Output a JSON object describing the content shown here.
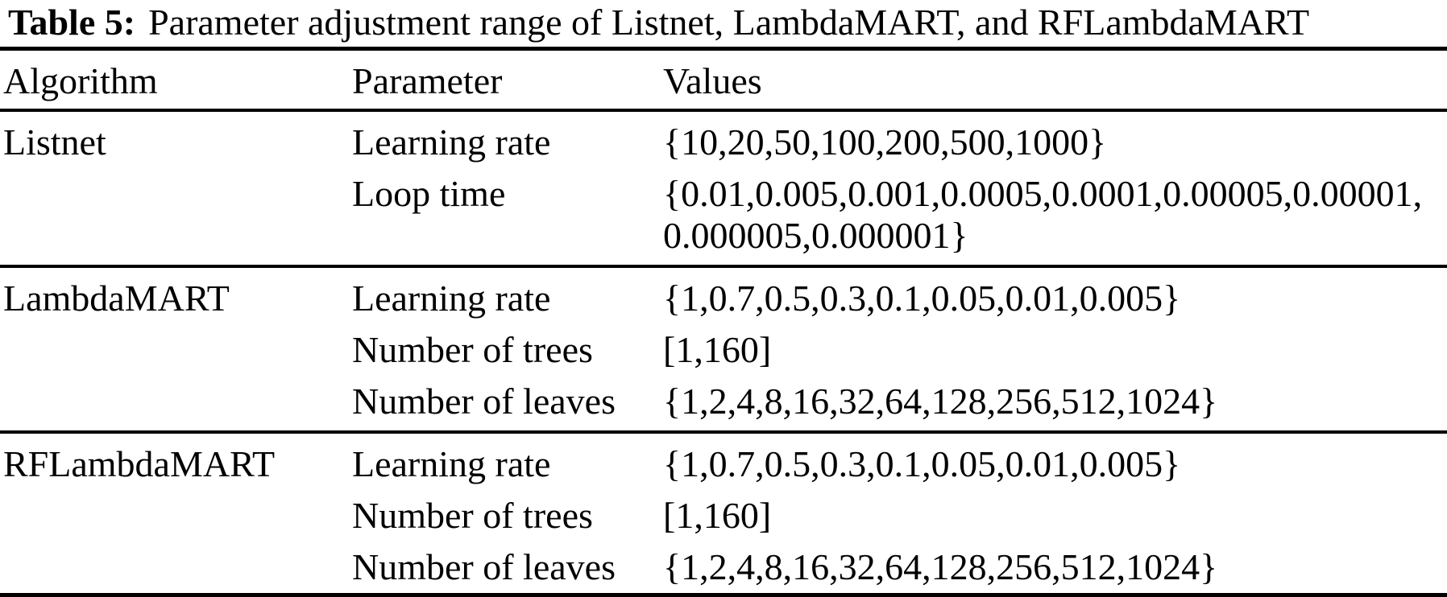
{
  "title": {
    "label": "Table 5:",
    "text": "Parameter adjustment range of Listnet, LambdaMART, and RFLambdaMART"
  },
  "table": {
    "columns": [
      "Algorithm",
      "Parameter",
      "Values"
    ],
    "groups": [
      {
        "algorithm": "Listnet",
        "rows": [
          {
            "parameter": "Learning rate",
            "values": [
              "{10,20,50,100,200,500,1000}"
            ]
          },
          {
            "parameter": "Loop time",
            "values": [
              "{0.01,0.005,0.001,0.0005,0.0001,0.00005,0.00001,",
              "0.000005,0.000001}"
            ]
          }
        ]
      },
      {
        "algorithm": "LambdaMART",
        "rows": [
          {
            "parameter": "Learning rate",
            "values": [
              "{1,0.7,0.5,0.3,0.1,0.05,0.01,0.005}"
            ]
          },
          {
            "parameter": "Number of trees",
            "values": [
              "[1,160]"
            ]
          },
          {
            "parameter": "Number of leaves",
            "values": [
              "{1,2,4,8,16,32,64,128,256,512,1024}"
            ]
          }
        ]
      },
      {
        "algorithm": "RFLambdaMART",
        "rows": [
          {
            "parameter": "Learning rate",
            "values": [
              "{1,0.7,0.5,0.3,0.1,0.05,0.01,0.005}"
            ]
          },
          {
            "parameter": "Number of trees",
            "values": [
              "[1,160]"
            ]
          },
          {
            "parameter": "Number of leaves",
            "values": [
              "{1,2,4,8,16,32,64,128,256,512,1024}"
            ]
          }
        ]
      }
    ]
  }
}
